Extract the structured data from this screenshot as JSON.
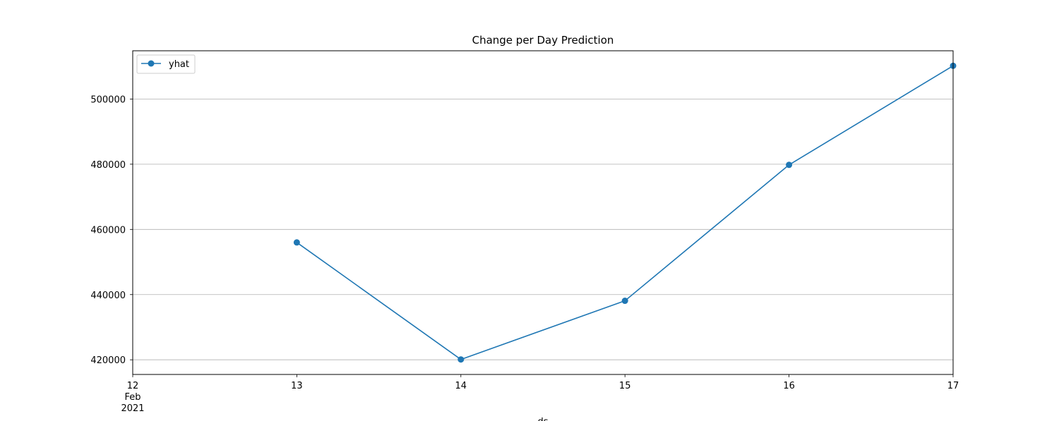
{
  "chart_data": {
    "type": "line",
    "title": "Change per Day Prediction",
    "xlabel": "ds",
    "ylabel": "",
    "x": [
      "13",
      "14",
      "15",
      "16",
      "17"
    ],
    "x_ticks": [
      "12",
      "13",
      "14",
      "15",
      "16",
      "17"
    ],
    "x_tick_sub": [
      "Feb",
      "2021"
    ],
    "xlim": [
      12,
      17
    ],
    "ylim": [
      415500,
      514800
    ],
    "y_ticks": [
      420000,
      440000,
      460000,
      480000,
      500000
    ],
    "y_tick_labels": [
      "420000",
      "440000",
      "460000",
      "480000",
      "500000"
    ],
    "series": [
      {
        "name": "yhat",
        "values": [
          456000,
          420100,
          438100,
          479800,
          510200
        ],
        "color": "#1f77b4",
        "marker": "circle"
      }
    ],
    "grid": "y-major",
    "legend": "upper-left"
  }
}
